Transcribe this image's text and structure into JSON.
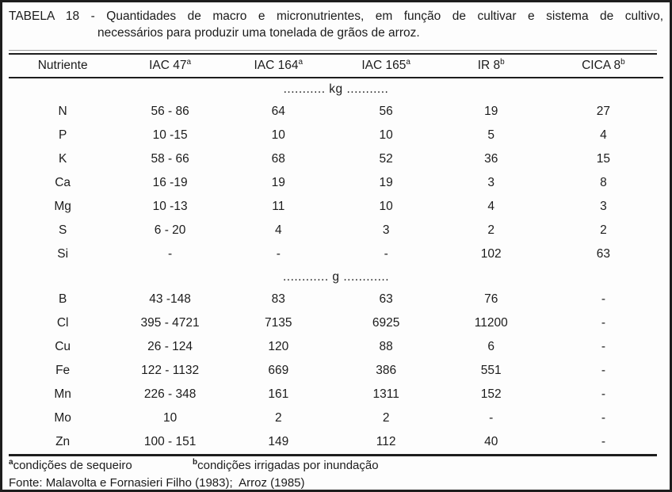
{
  "page": {
    "title_line1": "TABELA 18 - Quantidades de macro e micronutrientes, em função de cultivar e sistema de cultivo,",
    "title_line2": "necessários para produzir uma tonelada de grãos de arroz."
  },
  "table": {
    "columns": [
      {
        "label": "Nutriente",
        "sup": ""
      },
      {
        "label": "IAC 47",
        "sup": "a"
      },
      {
        "label": "IAC 164",
        "sup": "a"
      },
      {
        "label": "IAC 165",
        "sup": "a"
      },
      {
        "label": "IR 8",
        "sup": "b"
      },
      {
        "label": "CICA 8",
        "sup": "b"
      }
    ],
    "sections": [
      {
        "unit_label": "........... kg ...........",
        "rows": [
          {
            "nutrient": "N",
            "values": [
              "56 - 86",
              "64",
              "56",
              "19",
              "27"
            ]
          },
          {
            "nutrient": "P",
            "values": [
              "10 -15",
              "10",
              "10",
              "5",
              "4"
            ]
          },
          {
            "nutrient": "K",
            "values": [
              "58 - 66",
              "68",
              "52",
              "36",
              "15"
            ]
          },
          {
            "nutrient": "Ca",
            "values": [
              "16 -19",
              "19",
              "19",
              "3",
              "8"
            ]
          },
          {
            "nutrient": "Mg",
            "values": [
              "10 -13",
              "11",
              "10",
              "4",
              "3"
            ]
          },
          {
            "nutrient": "S",
            "values": [
              "6 - 20",
              "4",
              "3",
              "2",
              "2"
            ]
          },
          {
            "nutrient": "Si",
            "values": [
              "-",
              "-",
              "-",
              "102",
              "63"
            ]
          }
        ]
      },
      {
        "unit_label": "............ g ............",
        "rows": [
          {
            "nutrient": "B",
            "values": [
              "43 -148",
              "83",
              "63",
              "76",
              "-"
            ]
          },
          {
            "nutrient": "Cl",
            "values": [
              "395 - 4721",
              "7135",
              "6925",
              "11200",
              "-"
            ]
          },
          {
            "nutrient": "Cu",
            "values": [
              "26 - 124",
              "120",
              "88",
              "6",
              "-"
            ]
          },
          {
            "nutrient": "Fe",
            "values": [
              "122 - 1132",
              "669",
              "386",
              "551",
              "-"
            ]
          },
          {
            "nutrient": "Mn",
            "values": [
              "226 - 348",
              "161",
              "1311",
              "152",
              "-"
            ]
          },
          {
            "nutrient": "Mo",
            "values": [
              "10",
              "2",
              "2",
              "-",
              "-"
            ]
          },
          {
            "nutrient": "Zn",
            "values": [
              "100 - 151",
              "149",
              "112",
              "40",
              "-"
            ]
          }
        ]
      }
    ]
  },
  "footnotes": [
    {
      "sup": "a",
      "text": "condições de sequeiro"
    },
    {
      "sup": "b",
      "text": "condições irrigadas por inundação"
    }
  ],
  "source": "Fonte: Malavolta e Fornasieri Filho (1983);  Arroz (1985)",
  "colors": {
    "text": "#1c1c1c",
    "border": "#1e1e1e",
    "rule_light": "#9a9a9a",
    "background": "#fdfdfd"
  }
}
